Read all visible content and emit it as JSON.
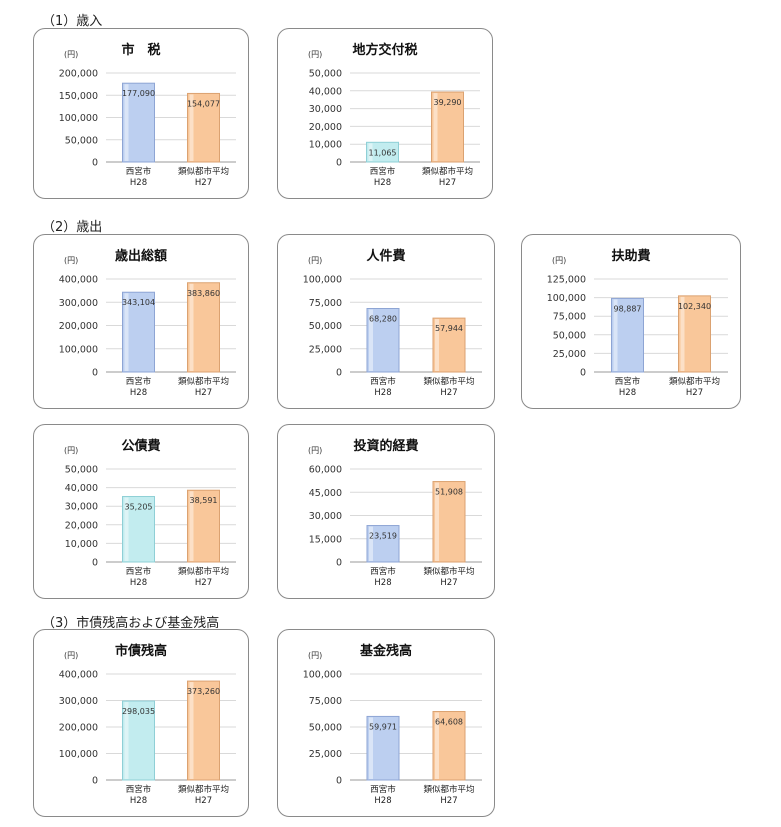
{
  "sections": [
    {
      "title": "（1）歳入"
    },
    {
      "title": "（2）歳出"
    },
    {
      "title": "（3）市債残高および基金残高"
    }
  ],
  "colors": {
    "blue": "#bccff0",
    "cyan": "#c2ecef",
    "orange": "#f9c79a",
    "blue_edge": "#8ea5d4",
    "cyan_edge": "#8fcfd6",
    "orange_edge": "#dba271"
  },
  "chart_data": [
    {
      "type": "bar",
      "title": "市　税",
      "unit": "(円)",
      "categories": [
        [
          "西宮市",
          "H28"
        ],
        [
          "類似都市平均",
          "H27"
        ]
      ],
      "values": [
        177090,
        154077
      ],
      "value_labels": [
        "177,090",
        "154,077"
      ],
      "ylim": [
        0,
        200000
      ],
      "yticks": [
        "0",
        "50,000",
        "100,000",
        "150,000",
        "200,000"
      ],
      "bar_colors": [
        "blue",
        "orange"
      ]
    },
    {
      "type": "bar",
      "title": "地方交付税",
      "unit": "(円)",
      "categories": [
        [
          "西宮市",
          "H28"
        ],
        [
          "類似都市平均",
          "H27"
        ]
      ],
      "values": [
        11065,
        39290
      ],
      "value_labels": [
        "11,065",
        "39,290"
      ],
      "ylim": [
        0,
        50000
      ],
      "yticks": [
        "0",
        "10,000",
        "20,000",
        "30,000",
        "40,000",
        "50,000"
      ],
      "bar_colors": [
        "cyan",
        "orange"
      ]
    },
    {
      "type": "bar",
      "title": "歳出総額",
      "unit": "(円)",
      "categories": [
        [
          "西宮市",
          "H28"
        ],
        [
          "類似都市平均",
          "H27"
        ]
      ],
      "values": [
        343104,
        383860
      ],
      "value_labels": [
        "343,104",
        "383,860"
      ],
      "ylim": [
        0,
        400000
      ],
      "yticks": [
        "0",
        "100,000",
        "200,000",
        "300,000",
        "400,000"
      ],
      "bar_colors": [
        "blue",
        "orange"
      ]
    },
    {
      "type": "bar",
      "title": "人件費",
      "unit": "(円)",
      "categories": [
        [
          "西宮市",
          "H28"
        ],
        [
          "類似都市平均",
          "H27"
        ]
      ],
      "values": [
        68280,
        57944
      ],
      "value_labels": [
        "68,280",
        "57,944"
      ],
      "ylim": [
        0,
        100000
      ],
      "yticks": [
        "0",
        "25,000",
        "50,000",
        "75,000",
        "100,000"
      ],
      "bar_colors": [
        "blue",
        "orange"
      ]
    },
    {
      "type": "bar",
      "title": "扶助費",
      "unit": "(円)",
      "categories": [
        [
          "西宮市",
          "H28"
        ],
        [
          "類似都市平均",
          "H27"
        ]
      ],
      "values": [
        98887,
        102340
      ],
      "value_labels": [
        "98,887",
        "102,340"
      ],
      "ylim": [
        0,
        125000
      ],
      "yticks": [
        "0",
        "25,000",
        "50,000",
        "75,000",
        "100,000",
        "125,000"
      ],
      "bar_colors": [
        "blue",
        "orange"
      ]
    },
    {
      "type": "bar",
      "title": "公債費",
      "unit": "(円)",
      "categories": [
        [
          "西宮市",
          "H28"
        ],
        [
          "類似都市平均",
          "H27"
        ]
      ],
      "values": [
        35205,
        38591
      ],
      "value_labels": [
        "35,205",
        "38,591"
      ],
      "ylim": [
        0,
        50000
      ],
      "yticks": [
        "0",
        "10,000",
        "20,000",
        "30,000",
        "40,000",
        "50,000"
      ],
      "bar_colors": [
        "cyan",
        "orange"
      ]
    },
    {
      "type": "bar",
      "title": "投資的経費",
      "unit": "(円)",
      "categories": [
        [
          "西宮市",
          "H28"
        ],
        [
          "類似都市平均",
          "H27"
        ]
      ],
      "values": [
        23519,
        51908
      ],
      "value_labels": [
        "23,519",
        "51,908"
      ],
      "ylim": [
        0,
        60000
      ],
      "yticks": [
        "0",
        "15,000",
        "30,000",
        "45,000",
        "60,000"
      ],
      "bar_colors": [
        "blue",
        "orange"
      ]
    },
    {
      "type": "bar",
      "title": "市債残高",
      "unit": "(円)",
      "categories": [
        [
          "西宮市",
          "H28"
        ],
        [
          "類似都市平均",
          "H27"
        ]
      ],
      "values": [
        298035,
        373260
      ],
      "value_labels": [
        "298,035",
        "373,260"
      ],
      "ylim": [
        0,
        400000
      ],
      "yticks": [
        "0",
        "100,000",
        "200,000",
        "300,000",
        "400,000"
      ],
      "bar_colors": [
        "cyan",
        "orange"
      ]
    },
    {
      "type": "bar",
      "title": "基金残高",
      "unit": "(円)",
      "categories": [
        [
          "西宮市",
          "H28"
        ],
        [
          "類似都市平均",
          "H27"
        ]
      ],
      "values": [
        59971,
        64608
      ],
      "value_labels": [
        "59,971",
        "64,608"
      ],
      "ylim": [
        0,
        100000
      ],
      "yticks": [
        "0",
        "25,000",
        "50,000",
        "75,000",
        "100,000"
      ],
      "bar_colors": [
        "blue",
        "orange"
      ]
    }
  ]
}
